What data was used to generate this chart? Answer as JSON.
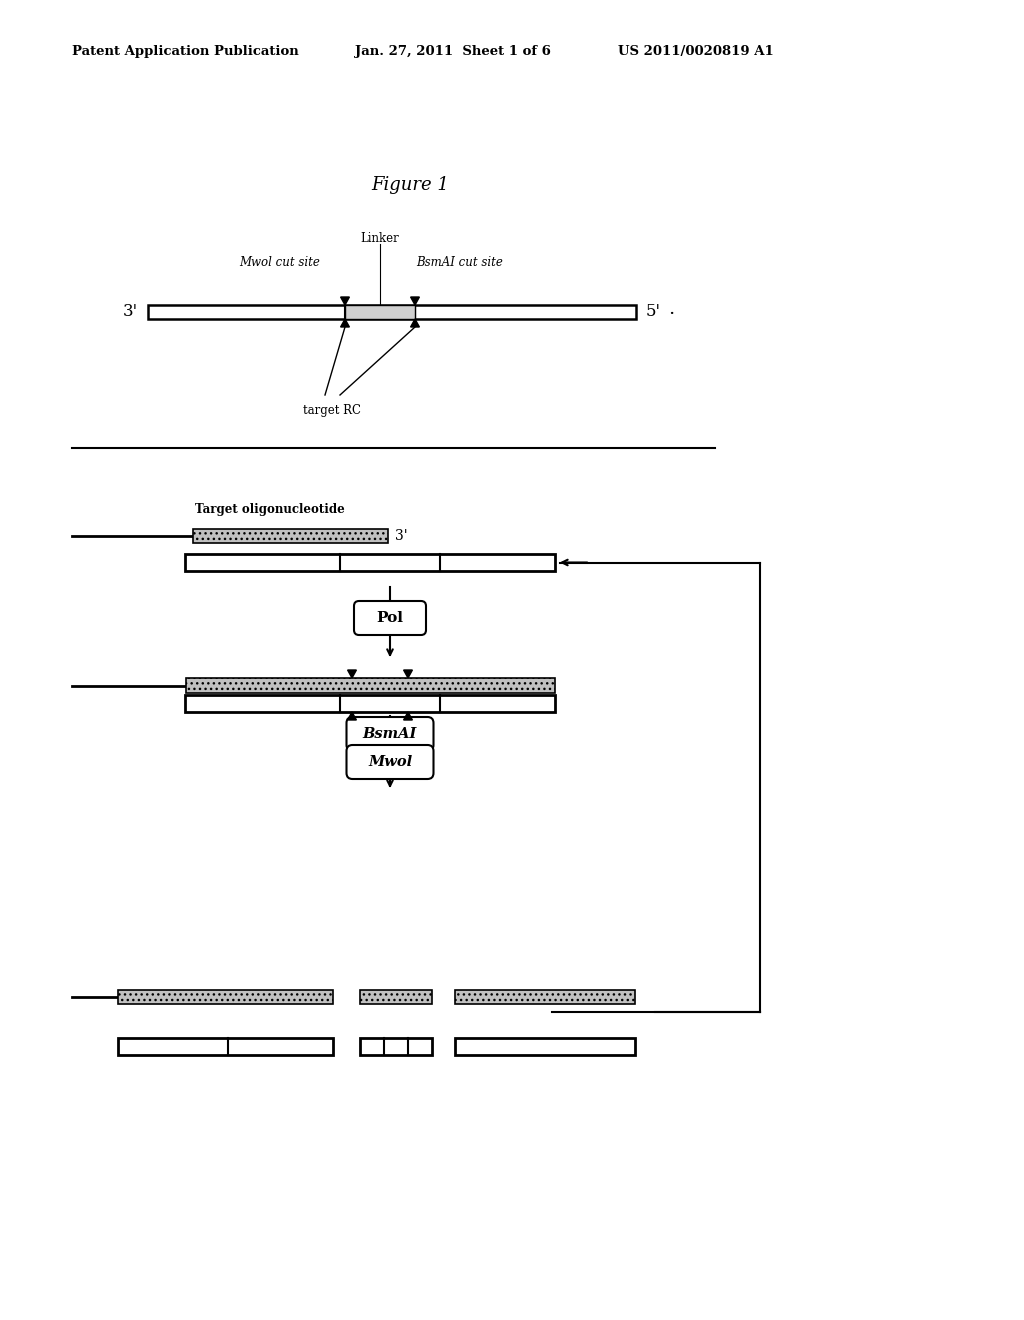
{
  "header_left": "Patent Application Publication",
  "header_mid": "Jan. 27, 2011  Sheet 1 of 6",
  "header_right": "US 2011/0020819 A1",
  "figure_title": "Figure 1",
  "bg_color": "#ffffff",
  "text_color": "#000000"
}
